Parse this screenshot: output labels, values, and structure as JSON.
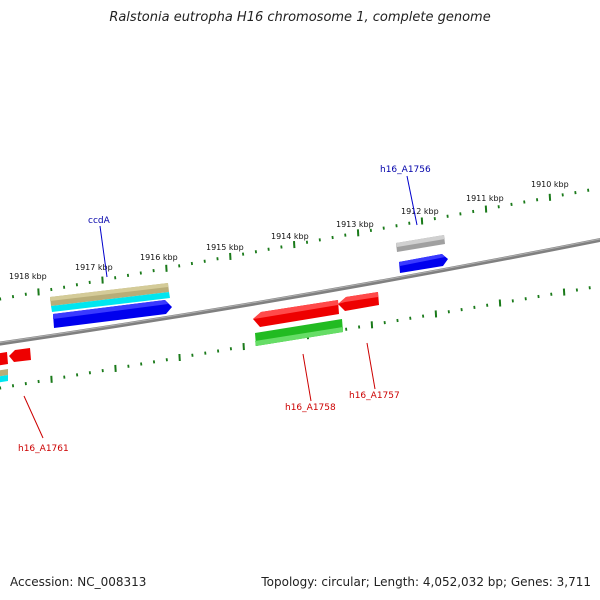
{
  "title": "Ralstonia eutropha H16 chromosome 1, complete genome",
  "footer": {
    "accession": "Accession: NC_008313",
    "summary": "Topology: circular; Length: 4,052,032 bp; Genes: 3,711"
  },
  "tick_labels": [
    "1910 kbp",
    "1911 kbp",
    "1912 kbp",
    "1913 kbp",
    "1914 kbp",
    "1915 kbp",
    "1916 kbp",
    "1917 kbp",
    "1918 kbp"
  ],
  "genes": {
    "h16_A1756": "h16_A1756",
    "ccdA": "ccdA",
    "h16_A1758": "h16_A1758",
    "h16_A1757": "h16_A1757",
    "h16_A1761": "h16_A1761"
  },
  "colors": {
    "backbone": "#808080",
    "tick": "#1a7a1a",
    "forward_cds": "#0000ee",
    "reverse_cds": "#ee0000",
    "forward_label": "#0000aa",
    "reverse_label": "#cc0000",
    "gene_gray": "#b8b8b8",
    "gene_tan": "#b8ad78",
    "gene_cyan": "#00e6f0",
    "gene_green": "#22bb22"
  }
}
